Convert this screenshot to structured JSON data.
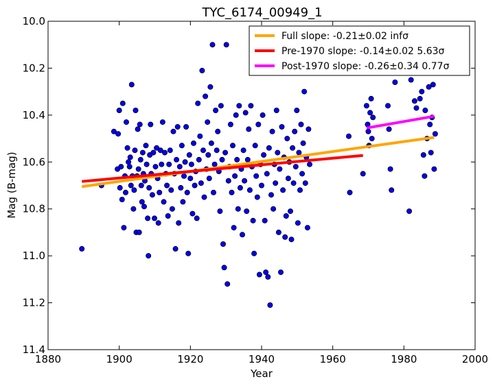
{
  "chart_data": {
    "type": "scatter",
    "title": "TYC_6174_00949_1",
    "xlabel": "Year",
    "ylabel": "Mag (B-mag)",
    "xlim": [
      1880,
      2000
    ],
    "ylim": [
      11.4,
      10.0
    ],
    "y_inverted": true,
    "grid": false,
    "legend_position": "top-right",
    "x_ticks": [
      "1880",
      "1900",
      "1920",
      "1940",
      "1960",
      "1980",
      "2000"
    ],
    "y_ticks": [
      "10.0",
      "10.2",
      "10.4",
      "10.6",
      "10.8",
      "11.0",
      "11.2",
      "11.4"
    ],
    "point_color": "#0000ff",
    "lines": [
      {
        "name": "Full slope: -0.21±0.02 infσ",
        "color": "#ffa500",
        "x": [
          1889.5,
          1988.5
        ],
        "y": [
          10.705,
          10.495
        ]
      },
      {
        "name": "Pre-1970 slope: -0.14±0.02 5.63σ",
        "color": "#ff0000",
        "x": [
          1889.5,
          1968.5
        ],
        "y": [
          10.683,
          10.572
        ]
      },
      {
        "name": "Post-1970 slope: -0.26±0.34 0.77σ",
        "color": "#ff00ff",
        "x": [
          1969.5,
          1988.5
        ],
        "y": [
          10.455,
          10.405
        ]
      }
    ],
    "points": [
      [
        1889.5,
        10.97
      ],
      [
        1895,
        10.7
      ],
      [
        1898.5,
        10.47
      ],
      [
        1899.5,
        10.63
      ],
      [
        1899.7,
        10.48
      ],
      [
        1900,
        10.38
      ],
      [
        1900.2,
        10.71
      ],
      [
        1900.5,
        10.62
      ],
      [
        1900.8,
        10.76
      ],
      [
        1901,
        10.35
      ],
      [
        1901.3,
        10.88
      ],
      [
        1901.6,
        10.66
      ],
      [
        1901.8,
        10.73
      ],
      [
        1902,
        10.43
      ],
      [
        1902.3,
        10.54
      ],
      [
        1902.6,
        10.6
      ],
      [
        1902.9,
        10.62
      ],
      [
        1903.1,
        10.58
      ],
      [
        1903.3,
        10.7
      ],
      [
        1903.5,
        10.27
      ],
      [
        1903.7,
        10.66
      ],
      [
        1904,
        10.8
      ],
      [
        1904.2,
        10.72
      ],
      [
        1904.4,
        10.55
      ],
      [
        1904.6,
        10.38
      ],
      [
        1904.8,
        10.9
      ],
      [
        1905,
        10.66
      ],
      [
        1905.2,
        10.46
      ],
      [
        1905.4,
        10.63
      ],
      [
        1905.6,
        10.9
      ],
      [
        1905.8,
        10.44
      ],
      [
        1906,
        10.59
      ],
      [
        1906.2,
        10.7
      ],
      [
        1906.4,
        10.77
      ],
      [
        1906.6,
        10.56
      ],
      [
        1906.8,
        10.65
      ],
      [
        1907,
        10.79
      ],
      [
        1907.2,
        10.68
      ],
      [
        1907.5,
        10.53
      ],
      [
        1907.7,
        10.61
      ],
      [
        1908,
        10.84
      ],
      [
        1908.2,
        11.0
      ],
      [
        1908.4,
        10.71
      ],
      [
        1908.6,
        10.57
      ],
      [
        1908.8,
        10.44
      ],
      [
        1909,
        10.65
      ],
      [
        1909.3,
        10.74
      ],
      [
        1909.6,
        10.56
      ],
      [
        1909.9,
        10.84
      ],
      [
        1910.2,
        10.62
      ],
      [
        1910.5,
        10.54
      ],
      [
        1910.8,
        10.67
      ],
      [
        1911,
        10.86
      ],
      [
        1911.3,
        10.73
      ],
      [
        1911.6,
        10.55
      ],
      [
        1911.9,
        10.61
      ],
      [
        1912.2,
        10.43
      ],
      [
        1912.5,
        10.77
      ],
      [
        1912.8,
        10.56
      ],
      [
        1913.1,
        10.65
      ],
      [
        1913.4,
        10.7
      ],
      [
        1913.7,
        10.83
      ],
      [
        1914,
        10.61
      ],
      [
        1914.3,
        10.55
      ],
      [
        1914.6,
        10.72
      ],
      [
        1914.9,
        10.8
      ],
      [
        1915.2,
        10.47
      ],
      [
        1915.5,
        10.65
      ],
      [
        1915.8,
        10.97
      ],
      [
        1916.1,
        10.59
      ],
      [
        1916.4,
        10.45
      ],
      [
        1916.7,
        10.86
      ],
      [
        1917,
        10.62
      ],
      [
        1917.3,
        10.71
      ],
      [
        1917.6,
        10.53
      ],
      [
        1917.9,
        10.77
      ],
      [
        1918.2,
        10.66
      ],
      [
        1918.5,
        10.6
      ],
      [
        1918.8,
        10.45
      ],
      [
        1919.1,
        10.73
      ],
      [
        1919.4,
        10.99
      ],
      [
        1919.7,
        10.57
      ],
      [
        1920,
        10.67
      ],
      [
        1920.3,
        10.61
      ],
      [
        1920.6,
        10.82
      ],
      [
        1920.9,
        10.52
      ],
      [
        1921.2,
        10.7
      ],
      [
        1921.5,
        10.64
      ],
      [
        1921.8,
        10.84
      ],
      [
        1922.1,
        10.35
      ],
      [
        1922.4,
        10.59
      ],
      [
        1922.7,
        10.49
      ],
      [
        1923,
        10.69
      ],
      [
        1923.3,
        10.21
      ],
      [
        1923.6,
        10.55
      ],
      [
        1923.9,
        10.75
      ],
      [
        1924.2,
        10.32
      ],
      [
        1924.5,
        10.63
      ],
      [
        1924.8,
        10.43
      ],
      [
        1925,
        10.57
      ],
      [
        1925.3,
        10.67
      ],
      [
        1925.6,
        10.28
      ],
      [
        1925.9,
        10.52
      ],
      [
        1926.2,
        10.1
      ],
      [
        1926.5,
        10.73
      ],
      [
        1926.8,
        10.61
      ],
      [
        1927.1,
        10.38
      ],
      [
        1927.4,
        10.55
      ],
      [
        1927.7,
        10.47
      ],
      [
        1928,
        10.64
      ],
      [
        1928.3,
        10.81
      ],
      [
        1928.6,
        10.36
      ],
      [
        1928.9,
        10.59
      ],
      [
        1929.2,
        10.95
      ],
      [
        1929.5,
        11.05
      ],
      [
        1929.8,
        10.56
      ],
      [
        1930.1,
        10.1
      ],
      [
        1930.4,
        11.12
      ],
      [
        1930.7,
        10.68
      ],
      [
        1931,
        10.62
      ],
      [
        1931.3,
        10.44
      ],
      [
        1931.6,
        10.73
      ],
      [
        1931.9,
        10.53
      ],
      [
        1932.2,
        10.88
      ],
      [
        1932.5,
        10.66
      ],
      [
        1932.8,
        10.4
      ],
      [
        1933.1,
        10.59
      ],
      [
        1933.4,
        10.8
      ],
      [
        1933.7,
        10.36
      ],
      [
        1934,
        10.71
      ],
      [
        1934.3,
        10.63
      ],
      [
        1934.6,
        10.91
      ],
      [
        1934.9,
        10.55
      ],
      [
        1935.2,
        10.68
      ],
      [
        1935.5,
        10.39
      ],
      [
        1935.8,
        10.81
      ],
      [
        1936.1,
        10.59
      ],
      [
        1936.4,
        10.46
      ],
      [
        1936.7,
        10.72
      ],
      [
        1937,
        10.36
      ],
      [
        1937.3,
        10.62
      ],
      [
        1937.6,
        10.85
      ],
      [
        1937.9,
        10.99
      ],
      [
        1938.2,
        10.53
      ],
      [
        1938.5,
        10.66
      ],
      [
        1938.8,
        10.75
      ],
      [
        1939.1,
        10.44
      ],
      [
        1939.4,
        11.08
      ],
      [
        1939.7,
        10.61
      ],
      [
        1940,
        10.7
      ],
      [
        1940.3,
        10.4
      ],
      [
        1940.6,
        10.57
      ],
      [
        1940.9,
        10.85
      ],
      [
        1941.2,
        11.07
      ],
      [
        1941.5,
        10.65
      ],
      [
        1941.8,
        11.09
      ],
      [
        1942.1,
        10.54
      ],
      [
        1942.4,
        11.21
      ],
      [
        1942.7,
        10.74
      ],
      [
        1943,
        10.47
      ],
      [
        1943.3,
        10.8
      ],
      [
        1943.6,
        10.61
      ],
      [
        1943.9,
        10.69
      ],
      [
        1944.2,
        10.38
      ],
      [
        1944.5,
        10.56
      ],
      [
        1944.8,
        10.9
      ],
      [
        1945.1,
        10.63
      ],
      [
        1945.4,
        11.07
      ],
      [
        1945.7,
        10.45
      ],
      [
        1946,
        10.72
      ],
      [
        1946.3,
        10.58
      ],
      [
        1946.6,
        10.92
      ],
      [
        1946.9,
        10.83
      ],
      [
        1947.2,
        10.5
      ],
      [
        1947.5,
        10.67
      ],
      [
        1947.8,
        10.6
      ],
      [
        1948.1,
        10.81
      ],
      [
        1948.4,
        10.93
      ],
      [
        1948.7,
        10.54
      ],
      [
        1949,
        10.69
      ],
      [
        1949.3,
        10.47
      ],
      [
        1949.6,
        10.62
      ],
      [
        1949.9,
        10.38
      ],
      [
        1950.2,
        10.86
      ],
      [
        1950.5,
        10.56
      ],
      [
        1950.8,
        10.72
      ],
      [
        1951.1,
        10.44
      ],
      [
        1951.4,
        10.65
      ],
      [
        1951.7,
        10.52
      ],
      [
        1952,
        10.3
      ],
      [
        1952.3,
        10.69
      ],
      [
        1952.6,
        10.58
      ],
      [
        1952.9,
        10.88
      ],
      [
        1953.2,
        10.46
      ],
      [
        1953.5,
        10.61
      ],
      [
        1964.5,
        10.49
      ],
      [
        1964.8,
        10.73
      ],
      [
        1968.5,
        10.65
      ],
      [
        1969.5,
        10.36
      ],
      [
        1969.8,
        10.44
      ],
      [
        1970,
        10.47
      ],
      [
        1970.2,
        10.53
      ],
      [
        1970.5,
        10.39
      ],
      [
        1970.8,
        10.33
      ],
      [
        1971,
        10.5
      ],
      [
        1971.3,
        10.41
      ],
      [
        1975.5,
        10.36
      ],
      [
        1975.8,
        10.46
      ],
      [
        1976.2,
        10.63
      ],
      [
        1976.5,
        10.72
      ],
      [
        1977.5,
        10.26
      ],
      [
        1981.5,
        10.81
      ],
      [
        1982,
        10.25
      ],
      [
        1983,
        10.34
      ],
      [
        1983.5,
        10.37
      ],
      [
        1984.5,
        10.33
      ],
      [
        1985,
        10.3
      ],
      [
        1985.5,
        10.57
      ],
      [
        1985.8,
        10.66
      ],
      [
        1986,
        10.38
      ],
      [
        1986.5,
        10.5
      ],
      [
        1987,
        10.28
      ],
      [
        1987.3,
        10.44
      ],
      [
        1987.6,
        10.56
      ],
      [
        1987.9,
        10.41
      ],
      [
        1988.2,
        10.27
      ],
      [
        1988.5,
        10.63
      ],
      [
        1988.8,
        10.48
      ]
    ]
  }
}
